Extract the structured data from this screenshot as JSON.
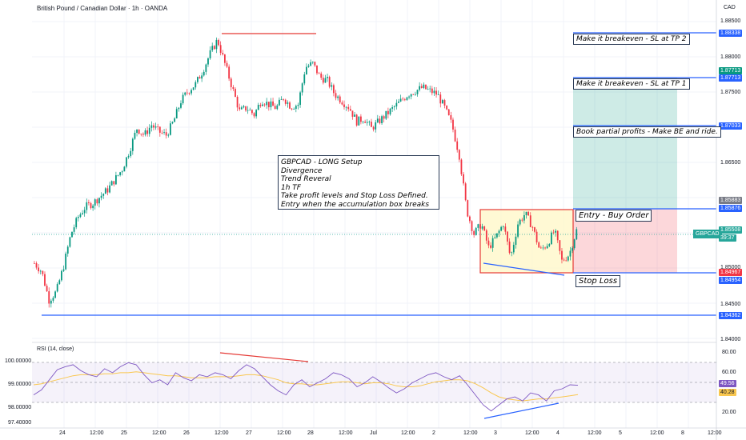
{
  "header": {
    "title": "British Pound / Canadian Dollar · 1h · OANDA",
    "currency": "CAD"
  },
  "annotations": {
    "setup_lines": [
      "GBPCAD - LONG Setup",
      "Divergence",
      "Trend Reveral",
      "1h TF",
      "Take profit levels and Stop Loss Defined.",
      "Entry when the accumulation box breaks"
    ],
    "tp2": "Make it breakeven - SL at TP 2",
    "tp1": "Make it breakeven - SL at TP 1",
    "partial": "Book partial profits - Make BE and ride.",
    "entry": "Entry - Buy Order",
    "stop": "Stop Loss"
  },
  "price_labels": [
    {
      "value": "1.88338",
      "color": "#2962ff"
    },
    {
      "value": "1.87713",
      "color": "#089981"
    },
    {
      "value": "1.87713",
      "color": "#2962ff"
    },
    {
      "value": "1.87033",
      "color": "#2962ff"
    },
    {
      "value": "1.85883",
      "color": "#787b86"
    },
    {
      "value": "1.85876",
      "color": "#2962ff"
    },
    {
      "value": "1.84967",
      "color": "#f23645"
    },
    {
      "value": "1.84954",
      "color": "#2962ff"
    },
    {
      "value": "1.84362",
      "color": "#2962ff"
    }
  ],
  "current": {
    "symbol": "GBPCAD",
    "price": "1.85508",
    "timer": "39:37"
  },
  "y_axis_ticks": [
    "1.88500",
    "1.88000",
    "1.87500",
    "1.86500",
    "1.85000",
    "1.84500",
    "1.84000"
  ],
  "x_axis_ticks": [
    "24",
    "12:00",
    "25",
    "12:00",
    "26",
    "12:00",
    "27",
    "12:00",
    "28",
    "12:00",
    "Jul",
    "12:00",
    "2",
    "12:00",
    "3",
    "12:00",
    "4",
    "12:00",
    "5",
    "12:00",
    "8",
    "12:00"
  ],
  "rsi": {
    "title": "RSI (14, close)",
    "left_ticks": [
      "100.00000",
      "99.00000",
      "98.00000",
      "97.40000"
    ],
    "right_ticks": [
      "80.00",
      "60.00",
      "20.00"
    ],
    "value": "49.56",
    "ma": "40.28",
    "upper_band": 70,
    "lower_band": 30
  },
  "chart_data": [
    {
      "type": "candlestick",
      "title": "British Pound / Canadian Dollar · 1h · OANDA",
      "ylim": [
        1.8395,
        1.8865
      ],
      "levels": [
        {
          "label": "1.88338",
          "value": 1.88338
        },
        {
          "label": "1.87713",
          "value": 1.87713
        },
        {
          "label": "1.87033",
          "value": 1.87033
        },
        {
          "label": "1.85876",
          "value": 1.85876
        },
        {
          "label": "1.84954",
          "value": 1.84954
        },
        {
          "label": "1.84362",
          "value": 1.84362
        }
      ],
      "accumulation_box": {
        "top": 1.85876,
        "bottom": 1.84954
      },
      "long_position": {
        "entry": 1.85876,
        "target": 1.87713,
        "stop": 1.84954
      },
      "close_path": [
        1.8502,
        1.849,
        1.8448,
        1.846,
        1.8498,
        1.8545,
        1.857,
        1.8585,
        1.859,
        1.86,
        1.861,
        1.8625,
        1.864,
        1.8668,
        1.87,
        1.869,
        1.8705,
        1.8695,
        1.869,
        1.871,
        1.874,
        1.8755,
        1.8765,
        1.8785,
        1.881,
        1.883,
        1.8795,
        1.876,
        1.8725,
        1.873,
        1.872,
        1.8742,
        1.8735,
        1.873,
        1.8745,
        1.8732,
        1.8735,
        1.879,
        1.8795,
        1.8775,
        1.877,
        1.875,
        1.874,
        1.873,
        1.871,
        1.8715,
        1.87,
        1.871,
        1.872,
        1.873,
        1.874,
        1.875,
        1.8755,
        1.876,
        1.8755,
        1.875,
        1.873,
        1.8705,
        1.866,
        1.858,
        1.8545,
        1.856,
        1.8525,
        1.854,
        1.856,
        1.851,
        1.856,
        1.8575,
        1.8555,
        1.852,
        1.853,
        1.855,
        1.8505,
        1.8515,
        1.855
      ],
      "series": [
        {
          "name": "GBPCAD",
          "value": 1.85508
        }
      ]
    },
    {
      "type": "line",
      "title": "RSI (14, close)",
      "ylim": [
        15,
        85
      ],
      "reference_lines": [
        70,
        30
      ],
      "series": [
        {
          "name": "RSI",
          "values": [
            40,
            45,
            55,
            65,
            68,
            70,
            64,
            60,
            58,
            66,
            62,
            68,
            72,
            70,
            60,
            52,
            55,
            50,
            62,
            57,
            54,
            60,
            58,
            62,
            60,
            56,
            64,
            70,
            66,
            58,
            50,
            44,
            40,
            50,
            55,
            48,
            52,
            56,
            62,
            60,
            56,
            48,
            52,
            58,
            53,
            47,
            42,
            46,
            52,
            56,
            60,
            62,
            58,
            55,
            59,
            50,
            40,
            30,
            24,
            30,
            36,
            38,
            34,
            42,
            40,
            34,
            44,
            46,
            50,
            49.56
          ]
        },
        {
          "name": "RSI-based MA",
          "values": [
            50,
            51,
            53,
            55,
            57,
            59,
            60,
            60,
            60,
            61,
            61,
            62,
            62,
            63,
            62,
            61,
            60,
            59,
            59,
            58,
            57,
            57,
            57,
            58,
            58,
            58,
            59,
            60,
            60,
            59,
            57,
            55,
            52,
            51,
            51,
            50,
            50,
            51,
            52,
            53,
            53,
            52,
            51,
            52,
            52,
            51,
            49,
            48,
            48,
            49,
            51,
            53,
            54,
            55,
            55,
            54,
            51,
            47,
            42,
            38,
            36,
            35,
            34,
            35,
            36,
            36,
            37,
            38,
            39,
            40.28
          ]
        }
      ]
    }
  ]
}
